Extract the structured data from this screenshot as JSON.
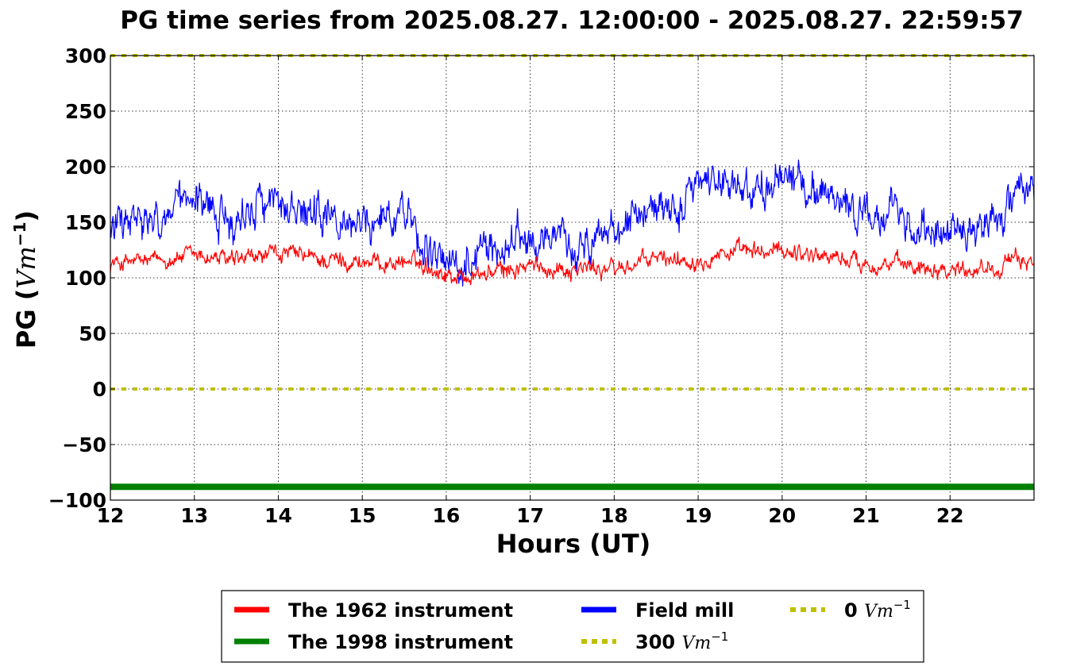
{
  "chart_data": {
    "type": "line",
    "title": "PG time series from 2025.08.27. 12:00:00 - 2025.08.27. 22:59:57",
    "xlabel": "Hours (UT)",
    "ylabel": "PG (",
    "ylabel_unit": "Vm",
    "ylabel_exp": "−1",
    "ylabel_close": ")",
    "xlim": [
      12,
      23
    ],
    "ylim": [
      -100,
      300
    ],
    "xticks": [
      12,
      13,
      14,
      15,
      16,
      17,
      18,
      19,
      20,
      21,
      22
    ],
    "yticks": [
      300,
      250,
      200,
      150,
      100,
      50,
      0,
      -50,
      -100
    ],
    "ytick_labels": [
      "300",
      "250",
      "200",
      "150",
      "100",
      "50",
      "0",
      "−50",
      "−100"
    ],
    "grid": true,
    "legend_placement": "below-center",
    "series": [
      {
        "name": "The 1962 instrument",
        "color": "#ff0000",
        "x": [
          12.0,
          12.25,
          12.5,
          12.75,
          13.0,
          13.25,
          13.5,
          13.75,
          14.0,
          14.25,
          14.5,
          14.75,
          15.0,
          15.25,
          15.5,
          15.75,
          16.0,
          16.25,
          16.5,
          16.75,
          17.0,
          17.25,
          17.5,
          17.75,
          18.0,
          18.25,
          18.5,
          18.75,
          19.0,
          19.25,
          19.5,
          19.75,
          20.0,
          20.25,
          20.5,
          20.75,
          21.0,
          21.25,
          21.5,
          21.75,
          22.0,
          22.25,
          22.5,
          22.75,
          23.0
        ],
        "y": [
          113,
          114,
          115,
          118,
          120,
          118,
          114,
          118,
          122,
          120,
          116,
          116,
          114,
          113,
          115,
          112,
          103,
          101,
          104,
          107,
          110,
          109,
          108,
          109,
          108,
          112,
          118,
          117,
          117,
          123,
          123,
          122,
          125,
          123,
          120,
          117,
          113,
          112,
          111,
          111,
          108,
          109,
          110,
          114,
          117
        ]
      },
      {
        "name": "The 1998 instrument",
        "color": "#008000",
        "x": [
          12,
          23
        ],
        "y": [
          -88,
          -88
        ]
      },
      {
        "name": "Field mill",
        "color": "#0000ff",
        "x": [
          12.0,
          12.25,
          12.5,
          12.75,
          13.0,
          13.25,
          13.5,
          13.75,
          14.0,
          14.25,
          14.5,
          14.75,
          15.0,
          15.25,
          15.5,
          15.75,
          16.0,
          16.25,
          16.5,
          16.75,
          17.0,
          17.25,
          17.5,
          17.75,
          18.0,
          18.25,
          18.5,
          18.75,
          19.0,
          19.25,
          19.5,
          19.75,
          20.0,
          20.25,
          20.5,
          20.75,
          21.0,
          21.25,
          21.5,
          21.75,
          22.0,
          22.25,
          22.5,
          22.75,
          23.0
        ],
        "y": [
          145,
          150,
          145,
          160,
          165,
          160,
          150,
          172,
          170,
          150,
          155,
          148,
          150,
          155,
          165,
          125,
          110,
          120,
          125,
          130,
          140,
          130,
          130,
          135,
          138,
          165,
          163,
          160,
          180,
          188,
          185,
          175,
          190,
          188,
          178,
          172,
          150,
          155,
          148,
          150,
          140,
          148,
          150,
          165,
          180
        ]
      },
      {
        "name": "300",
        "name_unit": "Vm",
        "name_exp": "−1",
        "color": "#bfbf00",
        "style": "dotted",
        "x": [
          12,
          23
        ],
        "y": [
          300,
          300
        ]
      },
      {
        "name": "0",
        "name_unit": "Vm",
        "name_exp": "−1",
        "color": "#bfbf00",
        "style": "dotted",
        "x": [
          12,
          23
        ],
        "y": [
          0,
          0
        ]
      }
    ]
  }
}
